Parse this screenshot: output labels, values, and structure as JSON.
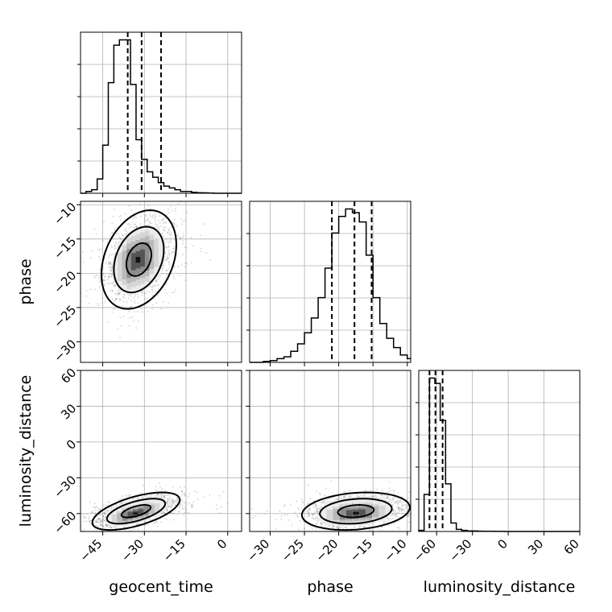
{
  "chart_data": {
    "type": "corner",
    "parameters": [
      "geocent_time",
      "phase",
      "luminosity_distance"
    ],
    "axis_labels": {
      "geocent_time": "geocent_time",
      "phase": "phase",
      "luminosity_distance": "luminosity_distance"
    },
    "ranges": {
      "geocent_time": [
        -53,
        5
      ],
      "phase": [
        -33,
        -9.5
      ],
      "luminosity_distance": [
        -75,
        60
      ]
    },
    "ticks": {
      "geocent_time": [
        -45,
        -30,
        -15,
        0
      ],
      "phase": [
        -30,
        -25,
        -20,
        -15,
        -10
      ],
      "luminosity_distance": [
        -60,
        -30,
        0,
        30,
        60
      ]
    },
    "tick_labels": {
      "geocent_time": [
        "−45",
        "−30",
        "−15",
        "0"
      ],
      "phase": [
        "−30",
        "−25",
        "−20",
        "−15",
        "−10"
      ],
      "luminosity_distance": [
        "−60",
        "−30",
        "0",
        "30",
        "60"
      ]
    },
    "quantiles": {
      "geocent_time": [
        -36,
        -31,
        -24
      ],
      "phase": [
        -21,
        -17.7,
        -15.2
      ],
      "luminosity_distance": [
        -66,
        -61,
        -55
      ]
    },
    "histograms": {
      "geocent_time": {
        "edges": [
          -53,
          -51,
          -49,
          -47,
          -45,
          -43,
          -41,
          -39,
          -37,
          -35,
          -33,
          -31,
          -29,
          -27,
          -25,
          -23,
          -21,
          -19,
          -17,
          -15,
          -13,
          -11,
          -9,
          -7,
          -5,
          -3,
          -1,
          1,
          3,
          5
        ],
        "counts": [
          0,
          0.01,
          0.02,
          0.08,
          0.27,
          0.62,
          0.83,
          0.86,
          0.86,
          0.61,
          0.3,
          0.19,
          0.12,
          0.09,
          0.06,
          0.04,
          0.03,
          0.02,
          0.01,
          0.01,
          0.005,
          0.003,
          0.002,
          0.001,
          0,
          0,
          0,
          0,
          0
        ]
      },
      "phase": {
        "edges": [
          -33,
          -32,
          -31,
          -30,
          -29,
          -28,
          -27,
          -26,
          -25,
          -24,
          -23,
          -22,
          -21,
          -20,
          -19,
          -18,
          -17,
          -16,
          -15,
          -14,
          -13,
          -12,
          -11,
          -10,
          -9.5
        ],
        "counts": [
          0,
          0,
          0.005,
          0.01,
          0.02,
          0.03,
          0.06,
          0.1,
          0.16,
          0.24,
          0.35,
          0.51,
          0.7,
          0.79,
          0.83,
          0.81,
          0.76,
          0.58,
          0.35,
          0.21,
          0.13,
          0.08,
          0.04,
          0.02
        ]
      },
      "luminosity_distance": {
        "edges": [
          -75,
          -70.5,
          -66,
          -61.5,
          -57,
          -52.5,
          -48,
          -43.5,
          -39,
          -34.5,
          -30,
          -25.5,
          -21,
          -16.5,
          -12,
          -7.5,
          -3,
          1.5,
          6,
          60
        ],
        "counts": [
          0.01,
          0.35,
          1.45,
          1.4,
          1.05,
          0.45,
          0.08,
          0.02,
          0.01,
          0.005,
          0.005,
          0.003,
          0.002,
          0.002,
          0.001,
          0.001,
          0,
          0,
          0
        ]
      }
    },
    "pairs": [
      {
        "x": "geocent_time",
        "y": "phase",
        "center": [
          -32,
          -18
        ],
        "spread": [
          6,
          3.2
        ],
        "correlation": 0.3,
        "contour_levels": [
          1,
          2,
          3
        ]
      },
      {
        "x": "geocent_time",
        "y": "luminosity_distance",
        "center": [
          -33,
          -58
        ],
        "spread": [
          7,
          7
        ],
        "correlation": 0.6,
        "contour_levels": [
          1,
          2,
          3
        ]
      },
      {
        "x": "phase",
        "y": "luminosity_distance",
        "center": [
          -17.5,
          -58
        ],
        "spread": [
          3.5,
          7
        ],
        "correlation": 0.2,
        "contour_levels": [
          1,
          2,
          3
        ]
      }
    ],
    "grid": true
  }
}
